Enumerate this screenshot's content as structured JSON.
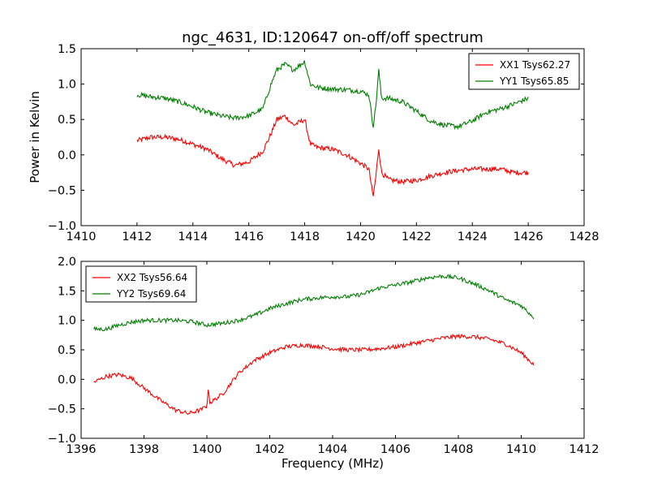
{
  "figure": {
    "title": "ngc_4631, ID:120647 on-off/off spectrum",
    "ylabel": "Power in Kelvin",
    "xlabel": "Frequency (MHz)"
  },
  "chart_data": [
    {
      "type": "line",
      "xlim": [
        1410,
        1428
      ],
      "ylim": [
        -1.0,
        1.5
      ],
      "xticks": [
        1410,
        1412,
        1414,
        1416,
        1418,
        1420,
        1422,
        1424,
        1426,
        1428
      ],
      "yticks": [
        -1.0,
        -0.5,
        0.0,
        0.5,
        1.0,
        1.5
      ],
      "xtick_labels": [
        "1410",
        "1412",
        "1414",
        "1416",
        "1418",
        "1420",
        "1422",
        "1424",
        "1426",
        "1428"
      ],
      "ytick_labels": [
        "−1.0",
        "−0.5",
        "0.0",
        "0.5",
        "1.0",
        "1.5"
      ],
      "legend_position": "top-right",
      "series": [
        {
          "name": "XX1 Tsys62.27",
          "color": "#ff0000",
          "points": [
            [
              1412.0,
              0.2
            ],
            [
              1412.5,
              0.25
            ],
            [
              1413.0,
              0.25
            ],
            [
              1413.5,
              0.22
            ],
            [
              1414.0,
              0.15
            ],
            [
              1414.5,
              0.08
            ],
            [
              1415.0,
              -0.05
            ],
            [
              1415.5,
              -0.15
            ],
            [
              1416.0,
              -0.1
            ],
            [
              1416.5,
              0.05
            ],
            [
              1416.8,
              0.3
            ],
            [
              1417.0,
              0.5
            ],
            [
              1417.3,
              0.55
            ],
            [
              1417.6,
              0.42
            ],
            [
              1418.0,
              0.5
            ],
            [
              1418.2,
              0.15
            ],
            [
              1418.5,
              0.1
            ],
            [
              1419.0,
              0.08
            ],
            [
              1419.5,
              0.0
            ],
            [
              1420.0,
              -0.12
            ],
            [
              1420.3,
              -0.2
            ],
            [
              1420.45,
              -0.6
            ],
            [
              1420.55,
              -0.3
            ],
            [
              1420.65,
              0.1
            ],
            [
              1420.75,
              -0.25
            ],
            [
              1421.0,
              -0.35
            ],
            [
              1421.5,
              -0.38
            ],
            [
              1422.0,
              -0.36
            ],
            [
              1422.5,
              -0.3
            ],
            [
              1423.0,
              -0.25
            ],
            [
              1423.5,
              -0.22
            ],
            [
              1424.0,
              -0.2
            ],
            [
              1424.5,
              -0.2
            ],
            [
              1425.0,
              -0.2
            ],
            [
              1425.5,
              -0.25
            ],
            [
              1426.0,
              -0.25
            ]
          ]
        },
        {
          "name": "YY1 Tsys65.85",
          "color": "#008000",
          "points": [
            [
              1412.0,
              0.85
            ],
            [
              1412.5,
              0.82
            ],
            [
              1413.0,
              0.8
            ],
            [
              1413.5,
              0.75
            ],
            [
              1414.0,
              0.68
            ],
            [
              1414.5,
              0.6
            ],
            [
              1415.0,
              0.55
            ],
            [
              1415.5,
              0.52
            ],
            [
              1416.0,
              0.55
            ],
            [
              1416.5,
              0.65
            ],
            [
              1416.8,
              1.0
            ],
            [
              1417.0,
              1.2
            ],
            [
              1417.3,
              1.28
            ],
            [
              1417.6,
              1.2
            ],
            [
              1418.0,
              1.32
            ],
            [
              1418.2,
              1.0
            ],
            [
              1418.5,
              0.95
            ],
            [
              1419.0,
              0.93
            ],
            [
              1419.5,
              0.92
            ],
            [
              1420.0,
              0.9
            ],
            [
              1420.3,
              0.85
            ],
            [
              1420.45,
              0.4
            ],
            [
              1420.55,
              0.7
            ],
            [
              1420.65,
              1.2
            ],
            [
              1420.75,
              0.8
            ],
            [
              1421.0,
              0.8
            ],
            [
              1421.5,
              0.75
            ],
            [
              1422.0,
              0.62
            ],
            [
              1422.5,
              0.48
            ],
            [
              1423.0,
              0.42
            ],
            [
              1423.5,
              0.4
            ],
            [
              1424.0,
              0.48
            ],
            [
              1424.5,
              0.6
            ],
            [
              1425.0,
              0.65
            ],
            [
              1425.5,
              0.72
            ],
            [
              1426.0,
              0.8
            ]
          ]
        }
      ]
    },
    {
      "type": "line",
      "xlim": [
        1396,
        1412
      ],
      "ylim": [
        -1.0,
        2.0
      ],
      "xticks": [
        1396,
        1398,
        1400,
        1402,
        1404,
        1406,
        1408,
        1410,
        1412
      ],
      "yticks": [
        -1.0,
        -0.5,
        0.0,
        0.5,
        1.0,
        1.5,
        2.0
      ],
      "xtick_labels": [
        "1396",
        "1398",
        "1400",
        "1402",
        "1404",
        "1406",
        "1408",
        "1410",
        "1412"
      ],
      "ytick_labels": [
        "−1.0",
        "−0.5",
        "0.0",
        "0.5",
        "1.0",
        "1.5",
        "2.0"
      ],
      "legend_position": "top-left",
      "series": [
        {
          "name": "XX2 Tsys56.64",
          "color": "#ff0000",
          "points": [
            [
              1396.4,
              -0.05
            ],
            [
              1396.8,
              0.05
            ],
            [
              1397.2,
              0.08
            ],
            [
              1397.6,
              0.02
            ],
            [
              1398.0,
              -0.15
            ],
            [
              1398.5,
              -0.35
            ],
            [
              1399.0,
              -0.52
            ],
            [
              1399.4,
              -0.58
            ],
            [
              1399.8,
              -0.52
            ],
            [
              1400.0,
              -0.45
            ],
            [
              1400.05,
              -0.15
            ],
            [
              1400.1,
              -0.4
            ],
            [
              1400.5,
              -0.25
            ],
            [
              1401.0,
              0.1
            ],
            [
              1401.5,
              0.32
            ],
            [
              1402.0,
              0.45
            ],
            [
              1402.5,
              0.55
            ],
            [
              1403.0,
              0.58
            ],
            [
              1403.5,
              0.56
            ],
            [
              1404.0,
              0.52
            ],
            [
              1404.5,
              0.5
            ],
            [
              1405.0,
              0.5
            ],
            [
              1405.5,
              0.52
            ],
            [
              1406.0,
              0.55
            ],
            [
              1406.5,
              0.6
            ],
            [
              1407.0,
              0.65
            ],
            [
              1407.5,
              0.7
            ],
            [
              1408.0,
              0.73
            ],
            [
              1408.5,
              0.72
            ],
            [
              1409.0,
              0.68
            ],
            [
              1409.5,
              0.6
            ],
            [
              1410.0,
              0.45
            ],
            [
              1410.4,
              0.25
            ]
          ]
        },
        {
          "name": "YY2 Tsys69.64",
          "color": "#008000",
          "points": [
            [
              1396.4,
              0.85
            ],
            [
              1396.8,
              0.85
            ],
            [
              1397.2,
              0.92
            ],
            [
              1397.6,
              0.97
            ],
            [
              1398.0,
              1.0
            ],
            [
              1398.5,
              1.0
            ],
            [
              1399.0,
              1.0
            ],
            [
              1399.5,
              0.98
            ],
            [
              1400.0,
              0.92
            ],
            [
              1400.5,
              0.95
            ],
            [
              1401.0,
              1.0
            ],
            [
              1401.5,
              1.08
            ],
            [
              1402.0,
              1.2
            ],
            [
              1402.5,
              1.28
            ],
            [
              1403.0,
              1.35
            ],
            [
              1403.5,
              1.38
            ],
            [
              1404.0,
              1.4
            ],
            [
              1404.5,
              1.4
            ],
            [
              1405.0,
              1.45
            ],
            [
              1405.5,
              1.55
            ],
            [
              1406.0,
              1.6
            ],
            [
              1406.5,
              1.65
            ],
            [
              1407.0,
              1.72
            ],
            [
              1407.5,
              1.75
            ],
            [
              1408.0,
              1.72
            ],
            [
              1408.5,
              1.62
            ],
            [
              1409.0,
              1.5
            ],
            [
              1409.5,
              1.35
            ],
            [
              1410.0,
              1.25
            ],
            [
              1410.4,
              1.05
            ]
          ]
        }
      ]
    }
  ]
}
